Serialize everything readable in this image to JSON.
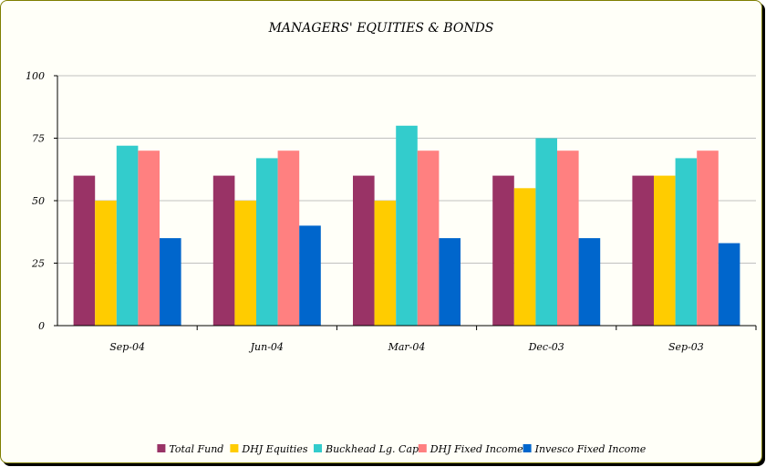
{
  "chart_data": {
    "type": "bar",
    "title": "MANAGERS' EQUITIES & BONDS",
    "categories": [
      "Sep-04",
      "Jun-04",
      "Mar-04",
      "Dec-03",
      "Sep-03"
    ],
    "ylim": [
      0,
      100
    ],
    "yticks": [
      0,
      25,
      50,
      75,
      100
    ],
    "grid": true,
    "legend_position": "bottom",
    "series": [
      {
        "name": "Total Fund",
        "color": "#993366",
        "values": [
          60,
          60,
          60,
          60,
          60
        ]
      },
      {
        "name": "DHJ Equities",
        "color": "#ffcc00",
        "values": [
          50,
          50,
          50,
          55,
          60
        ]
      },
      {
        "name": "Buckhead Lg. Cap",
        "color": "#33cccc",
        "values": [
          72,
          67,
          80,
          75,
          67
        ]
      },
      {
        "name": "DHJ Fixed Income",
        "color": "#ff8080",
        "values": [
          70,
          70,
          70,
          70,
          70
        ]
      },
      {
        "name": "Invesco Fixed Income",
        "color": "#0066cc",
        "values": [
          35,
          40,
          35,
          35,
          33
        ]
      }
    ]
  }
}
